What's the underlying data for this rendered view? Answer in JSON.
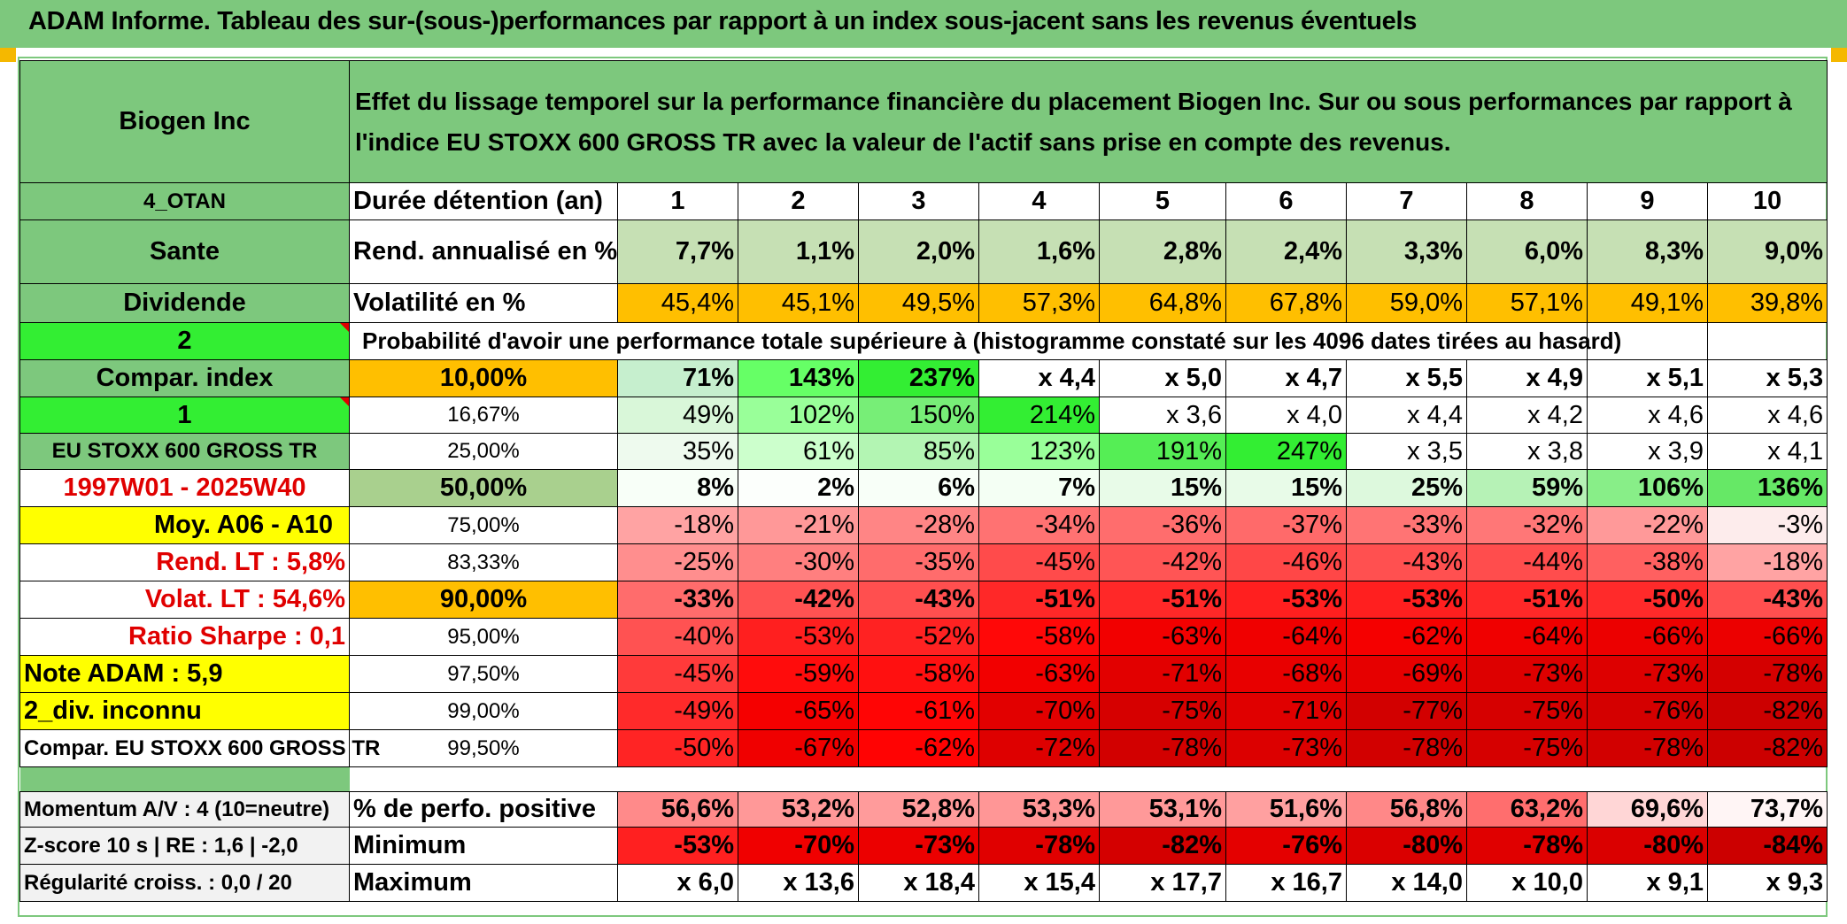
{
  "banner": {
    "title": "ADAM Informe. Tableau des sur-(sous-)performances par rapport à un index sous-jacent sans les revenus éventuels"
  },
  "header": {
    "company": "Biogen Inc",
    "description": "Effet du lissage temporel sur la performance financière du placement Biogen Inc. Sur ou sous performances par rapport à l'indice EU STOXX 600 GROSS TR avec la valeur de l'actif sans prise en compte des revenus."
  },
  "left": {
    "group": "4_OTAN",
    "sector": "Sante",
    "income": "Dividende",
    "level": "2",
    "compar_index": "Compar. index",
    "level2": "1",
    "index_name": "EU STOXX 600 GROSS TR",
    "period": "1997W01 - 2025W40",
    "moy": "Moy. A06 - A10",
    "rend_lt": "Rend. LT :   5,8%",
    "volat_lt": "Volat. LT :   54,6%",
    "sharpe": "Ratio Sharpe :    0,1",
    "note": "Note ADAM : 5,9",
    "div": "2_div. inconnu",
    "compar_full": "Compar. EU STOXX 600 GROSS TR"
  },
  "labels": {
    "duree": "Durée détention (an)",
    "rend": "Rend. annualisé en %",
    "volat": "Volatilité en %",
    "proba": "Probabilité d'avoir une performance totale supérieure à (histogramme constaté sur les 4096 dates tirées au hasard)"
  },
  "years": [
    "1",
    "2",
    "3",
    "4",
    "5",
    "6",
    "7",
    "8",
    "9",
    "10"
  ],
  "rend_values": [
    "7,7%",
    "1,1%",
    "2,0%",
    "1,6%",
    "2,8%",
    "2,4%",
    "3,3%",
    "6,0%",
    "8,3%",
    "9,0%"
  ],
  "volat_values": [
    "45,4%",
    "45,1%",
    "49,5%",
    "57,3%",
    "64,8%",
    "67,8%",
    "59,0%",
    "57,1%",
    "49,1%",
    "39,8%"
  ],
  "prob_rows": [
    {
      "pct": "10,00%",
      "values": [
        "71%",
        "143%",
        "237%",
        "x 4,4",
        "x 5,0",
        "x 4,7",
        "x 5,5",
        "x 4,9",
        "x 5,1",
        "x 5,3"
      ]
    },
    {
      "pct": "16,67%",
      "values": [
        "49%",
        "102%",
        "150%",
        "214%",
        "x 3,6",
        "x 4,0",
        "x 4,4",
        "x 4,2",
        "x 4,6",
        "x 4,6"
      ]
    },
    {
      "pct": "25,00%",
      "values": [
        "35%",
        "61%",
        "85%",
        "123%",
        "191%",
        "247%",
        "x 3,5",
        "x 3,8",
        "x 3,9",
        "x 4,1"
      ]
    },
    {
      "pct": "50,00%",
      "values": [
        "8%",
        "2%",
        "6%",
        "7%",
        "15%",
        "15%",
        "25%",
        "59%",
        "106%",
        "136%"
      ]
    },
    {
      "pct": "75,00%",
      "values": [
        "-18%",
        "-21%",
        "-28%",
        "-34%",
        "-36%",
        "-37%",
        "-33%",
        "-32%",
        "-22%",
        "-3%"
      ]
    },
    {
      "pct": "83,33%",
      "values": [
        "-25%",
        "-30%",
        "-35%",
        "-45%",
        "-42%",
        "-46%",
        "-43%",
        "-44%",
        "-38%",
        "-18%"
      ]
    },
    {
      "pct": "90,00%",
      "values": [
        "-33%",
        "-42%",
        "-43%",
        "-51%",
        "-51%",
        "-53%",
        "-53%",
        "-51%",
        "-50%",
        "-43%"
      ]
    },
    {
      "pct": "95,00%",
      "values": [
        "-40%",
        "-53%",
        "-52%",
        "-58%",
        "-63%",
        "-64%",
        "-62%",
        "-64%",
        "-66%",
        "-66%"
      ]
    },
    {
      "pct": "97,50%",
      "values": [
        "-45%",
        "-59%",
        "-58%",
        "-63%",
        "-71%",
        "-68%",
        "-69%",
        "-73%",
        "-73%",
        "-78%"
      ]
    },
    {
      "pct": "99,00%",
      "values": [
        "-49%",
        "-65%",
        "-61%",
        "-70%",
        "-75%",
        "-71%",
        "-77%",
        "-75%",
        "-76%",
        "-82%"
      ]
    },
    {
      "pct": "99,50%",
      "values": [
        "-50%",
        "-67%",
        "-62%",
        "-72%",
        "-78%",
        "-73%",
        "-78%",
        "-75%",
        "-78%",
        "-82%"
      ]
    }
  ],
  "bottom": {
    "momentum": "Momentum A/V : 4 (10=neutre)",
    "zscore": "Z-score 10 s | RE : 1,6 | -2,0",
    "regularite": "Régularité croiss. : 0,0 / 20",
    "pos_label": "% de perfo. positive",
    "min_label": "Minimum",
    "max_label": "Maximum",
    "pos_values": [
      "56,6%",
      "53,2%",
      "52,8%",
      "53,3%",
      "53,1%",
      "51,6%",
      "56,8%",
      "63,2%",
      "69,6%",
      "73,7%"
    ],
    "min_values": [
      "-53%",
      "-70%",
      "-73%",
      "-78%",
      "-82%",
      "-76%",
      "-80%",
      "-78%",
      "-80%",
      "-84%"
    ],
    "max_values": [
      "x 6,0",
      "x 13,6",
      "x 18,4",
      "x 15,4",
      "x 17,7",
      "x 16,7",
      "x 14,0",
      "x 10,0",
      "x 9,1",
      "x 9,3"
    ]
  },
  "colors": {
    "header_green": "#7dc87d",
    "lime": "#33ee33",
    "orange": "#ffbf00",
    "yellow": "#ffff00",
    "pale_green": "#c6e0b4",
    "label_red": "#e00000"
  }
}
